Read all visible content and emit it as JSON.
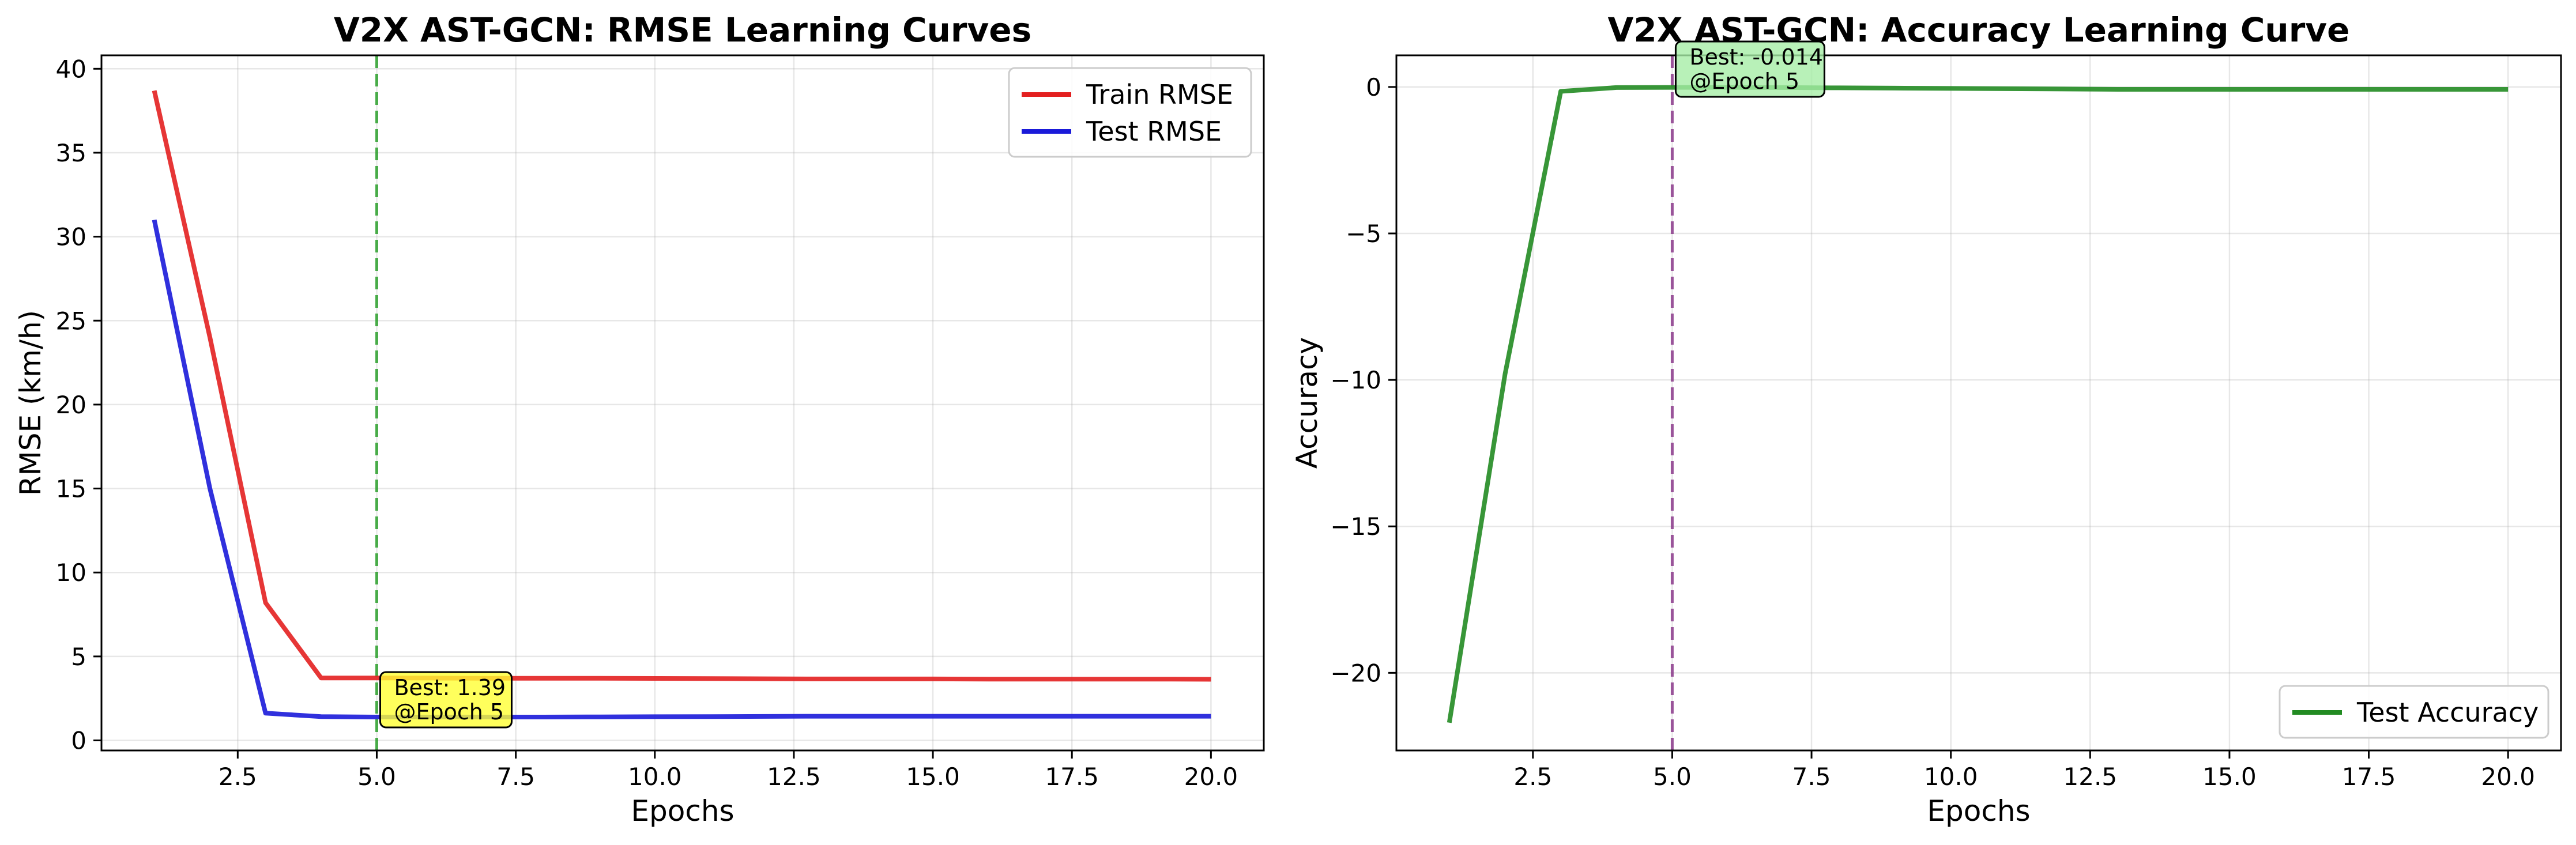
{
  "chart_data": [
    {
      "type": "line",
      "title": "V2X AST-GCN: RMSE Learning Curves",
      "xlabel": "Epochs",
      "ylabel": "RMSE (km/h)",
      "xlim": [
        0.05,
        20.95
      ],
      "ylim": [
        -0.6,
        40.8
      ],
      "xticks": [
        2.5,
        5.0,
        7.5,
        10.0,
        12.5,
        15.0,
        17.5,
        20.0
      ],
      "xtick_labels": [
        "2.5",
        "5.0",
        "7.5",
        "10.0",
        "12.5",
        "15.0",
        "17.5",
        "20.0"
      ],
      "yticks": [
        0,
        5,
        10,
        15,
        20,
        25,
        30,
        35,
        40
      ],
      "ytick_labels": [
        "0",
        "5",
        "10",
        "15",
        "20",
        "25",
        "30",
        "35",
        "40"
      ],
      "grid": true,
      "legend_position": "top-right",
      "x": [
        1,
        2,
        3,
        4,
        5,
        6,
        7,
        8,
        9,
        10,
        11,
        12,
        13,
        14,
        15,
        16,
        17,
        18,
        19,
        20
      ],
      "series": [
        {
          "name": "Train RMSE",
          "color": "#e32020",
          "values": [
            38.7,
            24.0,
            8.2,
            3.72,
            3.72,
            3.71,
            3.7,
            3.7,
            3.7,
            3.69,
            3.68,
            3.67,
            3.66,
            3.66,
            3.66,
            3.65,
            3.65,
            3.65,
            3.65,
            3.64
          ]
        },
        {
          "name": "Test RMSE",
          "color": "#1a1ad9",
          "values": [
            31.0,
            15.0,
            1.62,
            1.42,
            1.39,
            1.39,
            1.39,
            1.39,
            1.4,
            1.41,
            1.42,
            1.43,
            1.44,
            1.44,
            1.44,
            1.44,
            1.44,
            1.44,
            1.44,
            1.44
          ]
        }
      ],
      "marker_line": {
        "x": 5,
        "color": "#2ca02c"
      },
      "annotation": {
        "line1": "Best: 1.39",
        "line2": "@Epoch 5",
        "x": 5,
        "y": 1.39,
        "box_color": "#ffff33"
      }
    },
    {
      "type": "line",
      "title": "V2X AST-GCN: Accuracy Learning Curve",
      "xlabel": "Epochs",
      "ylabel": "Accuracy",
      "xlim": [
        0.05,
        20.95
      ],
      "ylim": [
        -22.65,
        1.08
      ],
      "xticks": [
        2.5,
        5.0,
        7.5,
        10.0,
        12.5,
        15.0,
        17.5,
        20.0
      ],
      "xtick_labels": [
        "2.5",
        "5.0",
        "7.5",
        "10.0",
        "12.5",
        "15.0",
        "17.5",
        "20.0"
      ],
      "yticks": [
        0,
        -5,
        -10,
        -15,
        -20
      ],
      "ytick_labels": [
        "0",
        "−5",
        "−10",
        "−15",
        "−20"
      ],
      "grid": true,
      "legend_position": "bottom-right",
      "x": [
        1,
        2,
        3,
        4,
        5,
        6,
        7,
        8,
        9,
        10,
        11,
        12,
        13,
        14,
        15,
        16,
        17,
        18,
        19,
        20
      ],
      "series": [
        {
          "name": "Test Accuracy",
          "color": "#228b22",
          "values": [
            -21.7,
            -9.8,
            -0.15,
            -0.02,
            -0.014,
            -0.015,
            -0.02,
            -0.03,
            -0.04,
            -0.05,
            -0.06,
            -0.07,
            -0.08,
            -0.08,
            -0.08,
            -0.08,
            -0.08,
            -0.08,
            -0.08,
            -0.08
          ]
        }
      ],
      "marker_line": {
        "x": 5,
        "color": "#8b3a8b"
      },
      "annotation": {
        "line1": "Best: -0.014",
        "line2": "@Epoch 5",
        "x": 5,
        "y": -0.014,
        "box_color": "#a6eda6"
      }
    }
  ]
}
